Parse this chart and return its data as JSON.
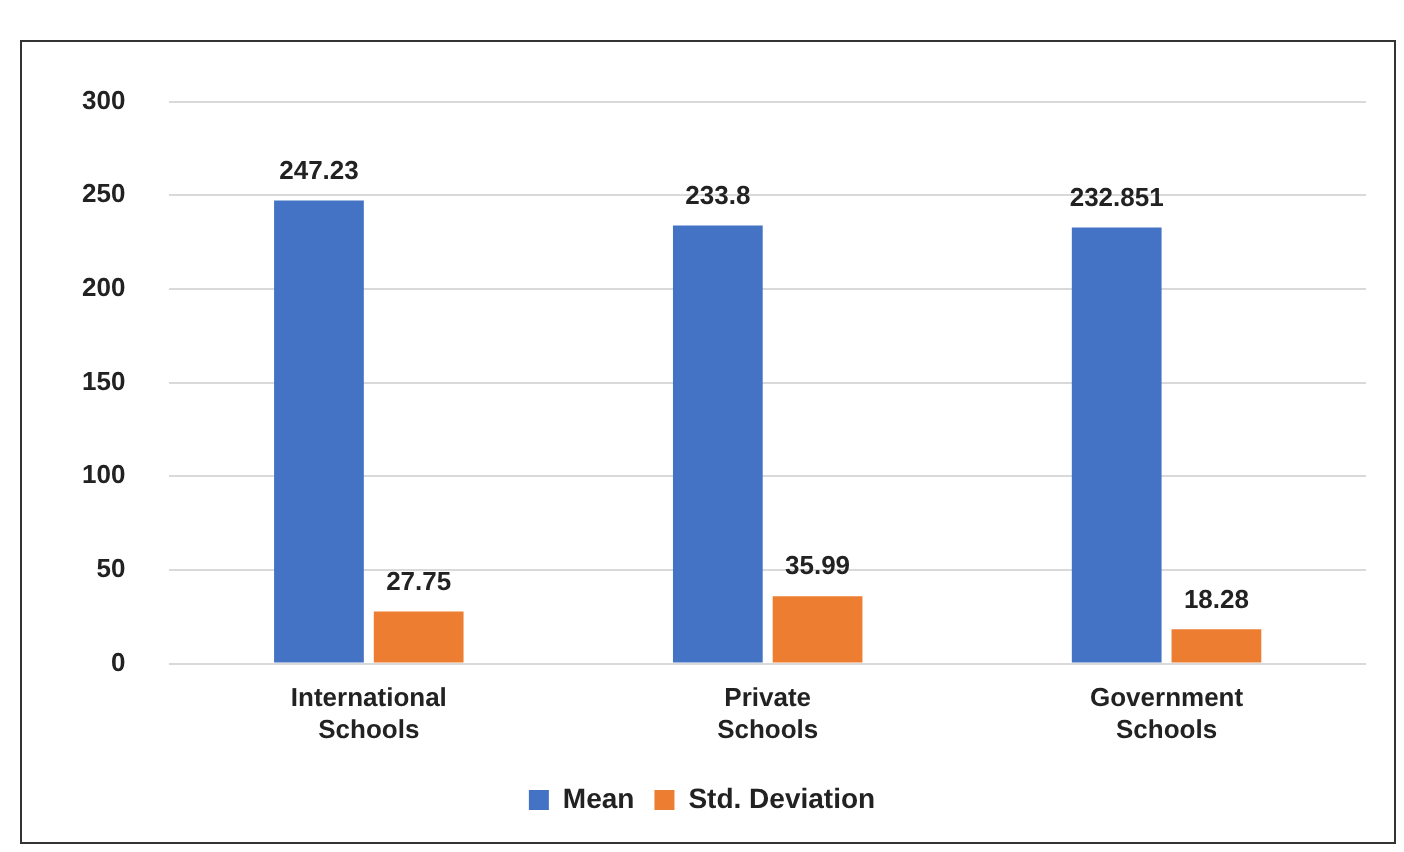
{
  "chart_data": {
    "type": "bar",
    "categories": [
      "International Schools",
      "Private Schools",
      "Government Schools"
    ],
    "series": [
      {
        "name": "Mean",
        "color": "#4472c4",
        "values": [
          247.23,
          233.8,
          232.851
        ]
      },
      {
        "name": "Std. Deviation",
        "color": "#ed7d31",
        "values": [
          27.75,
          35.99,
          18.28
        ]
      }
    ],
    "ylim": [
      0,
      300
    ],
    "yticks": [
      0,
      50,
      100,
      150,
      200,
      250,
      300
    ],
    "grid": "y",
    "legend": "bottom",
    "data_labels": true
  }
}
